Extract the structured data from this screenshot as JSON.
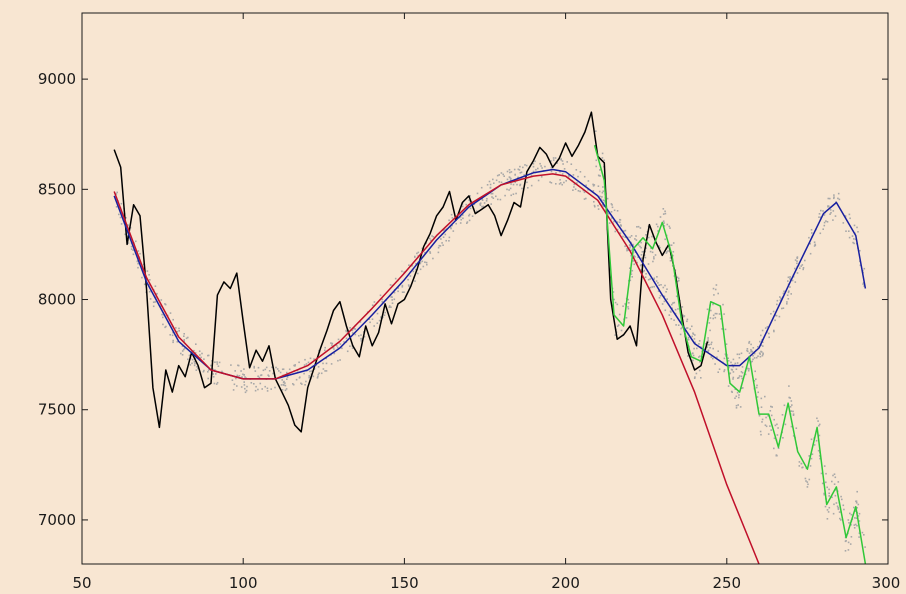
{
  "chart_data": {
    "type": "line",
    "title": "",
    "xlabel": "",
    "ylabel": "",
    "xlim": [
      50,
      300
    ],
    "ylim": [
      6800,
      9300
    ],
    "xticks": [
      50,
      100,
      150,
      200,
      250,
      300
    ],
    "yticks": [
      7000,
      7500,
      8000,
      8500,
      9000
    ],
    "xtick_labels": [
      "50",
      "100",
      "150",
      "200",
      "250",
      "300"
    ],
    "ytick_labels": [
      "7000",
      "7500",
      "8000",
      "8500",
      "9000"
    ],
    "grid": false,
    "legend": "none",
    "colors": {
      "background": "#f8e6d2",
      "frame": "#1a1a1a",
      "scatter": "#a8a8a8",
      "actual": "#000000",
      "poly_red": "#c0102a",
      "poly_blue": "#1820a0",
      "forecast_green": "#30c838"
    },
    "series": [
      {
        "style": "line",
        "color": "#000000",
        "x": [
          60,
          62,
          64,
          66,
          68,
          70,
          72,
          74,
          76,
          78,
          80,
          82,
          84,
          86,
          88,
          90,
          92,
          94,
          96,
          98,
          100,
          102,
          104,
          106,
          108,
          110,
          112,
          114,
          116,
          118,
          120,
          122,
          124,
          126,
          128,
          130,
          132,
          134,
          136,
          138,
          140,
          142,
          144,
          146,
          148,
          150,
          152,
          154,
          156,
          158,
          160,
          162,
          164,
          166,
          168,
          170,
          172,
          174,
          176,
          178,
          180,
          182,
          184,
          186,
          188,
          190,
          192,
          194,
          196,
          198,
          200,
          202,
          204,
          206,
          208,
          210,
          212,
          214,
          216,
          218,
          220,
          222,
          224,
          226,
          228,
          230,
          232,
          234,
          236,
          238,
          240,
          242,
          244
        ],
        "y": [
          8680,
          8600,
          8250,
          8430,
          8380,
          8050,
          7600,
          7420,
          7680,
          7580,
          7700,
          7650,
          7760,
          7700,
          7600,
          7620,
          8020,
          8080,
          8050,
          8120,
          7900,
          7690,
          7770,
          7720,
          7790,
          7640,
          7580,
          7520,
          7430,
          7400,
          7600,
          7690,
          7780,
          7860,
          7950,
          7990,
          7880,
          7790,
          7740,
          7880,
          7790,
          7850,
          7980,
          7890,
          7980,
          8000,
          8060,
          8140,
          8240,
          8300,
          8380,
          8420,
          8490,
          8360,
          8440,
          8470,
          8390,
          8410,
          8430,
          8380,
          8290,
          8360,
          8440,
          8420,
          8580,
          8630,
          8690,
          8660,
          8600,
          8640,
          8710,
          8650,
          8700,
          8760,
          8850,
          8650,
          8620,
          8000,
          7820,
          7840,
          7880,
          7790,
          8180,
          8340,
          8260,
          8200,
          8250,
          8120,
          7930,
          7760,
          7680,
          7700,
          7810
        ]
      },
      {
        "style": "line",
        "color": "#1820a0",
        "x": [
          60,
          70,
          80,
          90,
          100,
          110,
          120,
          130,
          140,
          150,
          160,
          170,
          180,
          190,
          196,
          200,
          210,
          220,
          230,
          240,
          250,
          254,
          260,
          270,
          280,
          284,
          290,
          293
        ],
        "y": [
          8470,
          8080,
          7810,
          7680,
          7640,
          7640,
          7680,
          7780,
          7930,
          8090,
          8270,
          8420,
          8520,
          8575,
          8590,
          8580,
          8470,
          8260,
          8020,
          7800,
          7700,
          7700,
          7780,
          8090,
          8390,
          8440,
          8290,
          8050
        ]
      },
      {
        "style": "line",
        "color": "#c0102a",
        "x": [
          60,
          70,
          80,
          90,
          100,
          110,
          120,
          130,
          140,
          150,
          160,
          170,
          180,
          190,
          196,
          200,
          210,
          220,
          230,
          240,
          250,
          260
        ],
        "y": [
          8490,
          8100,
          7830,
          7680,
          7640,
          7640,
          7700,
          7810,
          7960,
          8120,
          8290,
          8430,
          8520,
          8560,
          8570,
          8560,
          8450,
          8220,
          7930,
          7580,
          7160,
          6800
        ]
      },
      {
        "style": "line",
        "color": "#30c838",
        "x": [
          209,
          212,
          215,
          218,
          221,
          224,
          227,
          230,
          233,
          236,
          239,
          242,
          245,
          248,
          251,
          254,
          257,
          260,
          263,
          266,
          269,
          272,
          275,
          278,
          281,
          284,
          287,
          290,
          293
        ],
        "y": [
          8700,
          8540,
          7930,
          7880,
          8230,
          8280,
          8230,
          8350,
          8200,
          7900,
          7740,
          7720,
          7990,
          7970,
          7620,
          7580,
          7740,
          7480,
          7480,
          7330,
          7530,
          7310,
          7230,
          7420,
          7070,
          7150,
          6920,
          7060,
          6800
        ]
      }
    ]
  }
}
